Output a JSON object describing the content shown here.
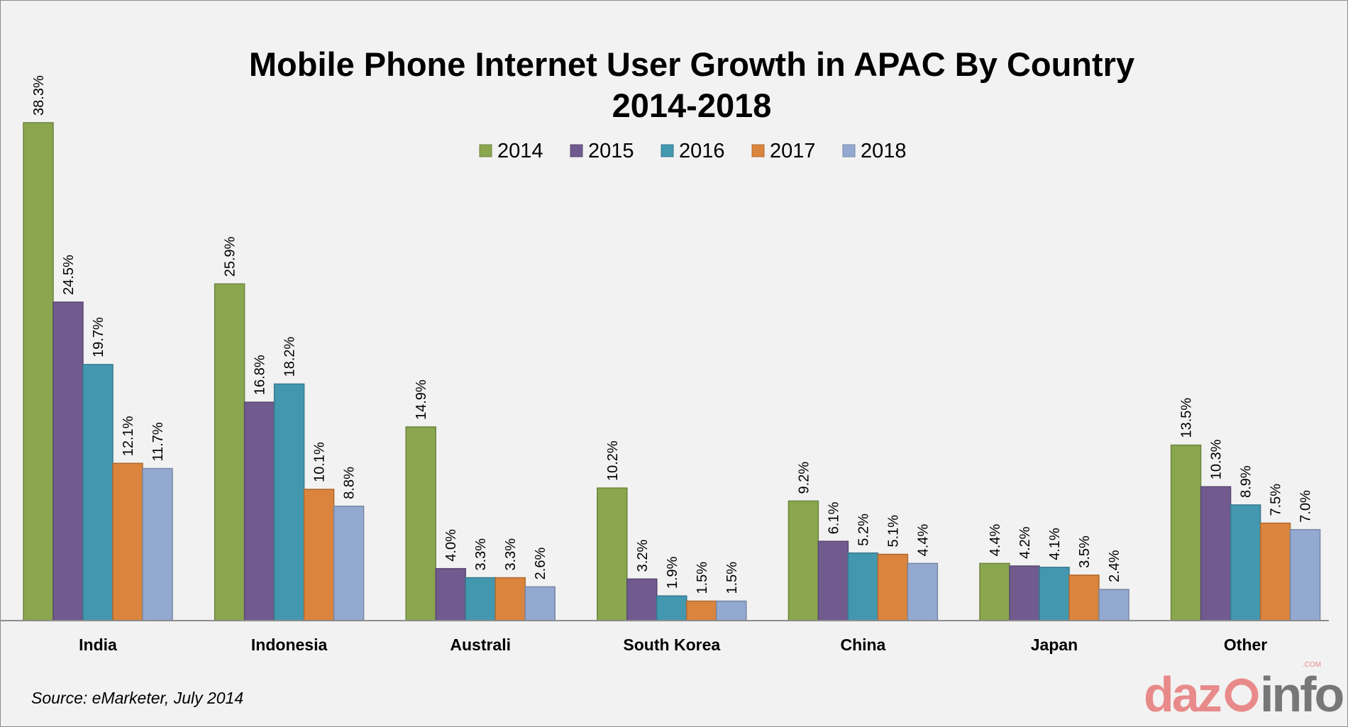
{
  "chart_data": {
    "type": "bar",
    "title": "Mobile Phone Internet User Growth in APAC By Country",
    "subtitle": "2014-2018",
    "categories": [
      "India",
      "Indonesia",
      "Australi",
      "South Korea",
      "China",
      "Japan",
      "Other"
    ],
    "series": [
      {
        "name": "2014",
        "color": "#8aa64e",
        "values": [
          38.3,
          25.9,
          14.9,
          10.2,
          9.2,
          4.4,
          13.5
        ]
      },
      {
        "name": "2015",
        "color": "#715a8e",
        "values": [
          24.5,
          16.8,
          4.0,
          3.2,
          6.1,
          4.2,
          10.3
        ]
      },
      {
        "name": "2016",
        "color": "#4398b0",
        "values": [
          19.7,
          18.2,
          3.3,
          1.9,
          5.2,
          4.1,
          8.9
        ]
      },
      {
        "name": "2017",
        "color": "#db843d",
        "values": [
          12.1,
          10.1,
          3.3,
          1.5,
          5.1,
          3.5,
          7.5
        ]
      },
      {
        "name": "2018",
        "color": "#94a9d0",
        "values": [
          11.7,
          8.8,
          2.6,
          1.5,
          4.4,
          2.4,
          7.0
        ]
      }
    ],
    "value_format": "%",
    "ylim": [
      0,
      40
    ],
    "grid": false,
    "y_axis_visible": false,
    "legend_position": "top-center",
    "data_labels": "rotated-vertical"
  },
  "source": "Source: eMarketer, July 2014",
  "logo": {
    "text": "dazeinfo",
    "suffix": ".com"
  }
}
